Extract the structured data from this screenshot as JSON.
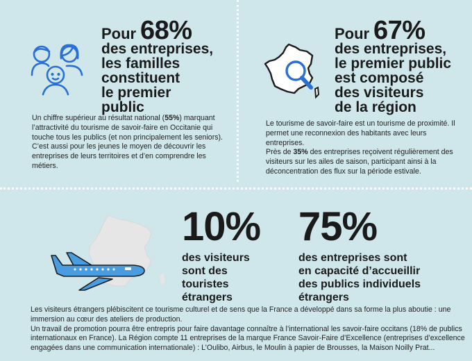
{
  "block1": {
    "pour": "Pour",
    "pct": "68%",
    "lines": [
      "des entreprises,",
      "les familles",
      "constituent",
      "le premier",
      "public"
    ],
    "para": {
      "t1": "Un chiffre supérieur au résultat national (",
      "b1": "55%",
      "t2": ") marquant l’attractivité du tourisme de savoir-faire en Occitanie qui touche tous les publics (et non principalement les seniors). C’est aussi pour les jeunes le moyen de découvrir les entreprises de leurs territoires et d’en comprendre les métiers."
    }
  },
  "block2": {
    "pour": "Pour",
    "pct": "67%",
    "lines": [
      "des entreprises,",
      "le premier public",
      "est composé",
      "des visiteurs",
      "de la région"
    ],
    "para1": "Le tourisme de savoir-faire est un tourisme de proximité. Il permet une reconnexion des habitants avec leurs entreprises.",
    "para2": {
      "t1": "Près de ",
      "b1": "35%",
      "t2": " des entreprises reçoivent régulièrement des visiteurs sur les ailes de saison, participant ainsi à la déconcentration des flux sur la période estivale."
    }
  },
  "block3": {
    "pct": "10%",
    "lines": [
      "des visiteurs",
      "sont des",
      "touristes",
      "étrangers"
    ]
  },
  "block4": {
    "pct": "75%",
    "lines": [
      "des entreprises sont",
      "en capacité d’accueillir",
      "des publics individuels",
      "étrangers"
    ]
  },
  "footer": {
    "p1": "Les visiteurs étrangers plébiscitent ce tourisme culturel et de sens que la France a développé dans sa forme la plus aboutie : une immersion au cœur des ateliers de production.",
    "p2": "Un travail de promotion pourra être entrepris pour faire davantage connaître à l’international les savoir-faire occitans (18% de publics internationaux en France). La Région compte 11 entreprises de la marque France Savoir-Faire d’Excellence (entreprises d’excellence engagées dans une communication internationale) : L’Oulibo, Airbus, le Moulin à papier de Brousses, la Maison Noilly Prat..."
  },
  "icons": [
    "family-icon",
    "france-magnifier-icon",
    "france-plane-icon"
  ],
  "colors": {
    "background": "#cfe7eb",
    "accent_blue": "#2a6fd3",
    "plane_blue": "#4a9ce0",
    "map_grey": "#e4e4e4"
  }
}
